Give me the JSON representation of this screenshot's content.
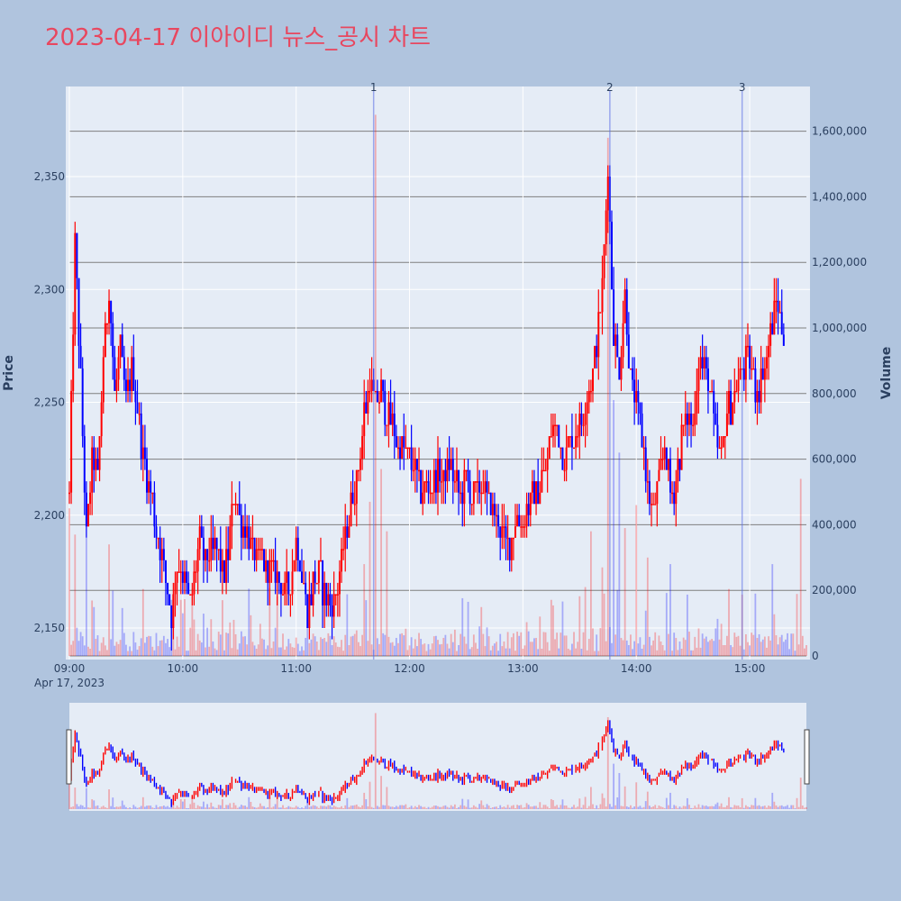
{
  "chart_data": {
    "type": "candlestick",
    "title": "2023-04-17 이아이디 뉴스_공시 차트",
    "date_label": "Apr 17, 2023",
    "ylabel": "Price",
    "y2label": "Volume",
    "price_range": [
      2135,
      2387
    ],
    "volume_range": [
      0,
      1750000
    ],
    "price_ticks": [
      "2,150",
      "2,200",
      "2,250",
      "2,300",
      "2,350"
    ],
    "price_tick_values": [
      2150,
      2200,
      2250,
      2300,
      2350
    ],
    "volume_ticks": [
      "0",
      "200,000",
      "400,000",
      "600,000",
      "800,000",
      "1,000,000",
      "1,200,000",
      "1,400,000",
      "1,600,000"
    ],
    "volume_tick_values": [
      0,
      200000,
      400000,
      600000,
      800000,
      1000000,
      1200000,
      1400000,
      1600000
    ],
    "time_ticks": [
      "09:00",
      "10:00",
      "11:00",
      "12:00",
      "13:00",
      "14:00",
      "15:00"
    ],
    "time_tick_minutes": [
      540,
      600,
      660,
      720,
      780,
      840,
      900
    ],
    "x_range_minutes": [
      540,
      930
    ],
    "up_color": "#ff0000",
    "down_color": "#0000ff",
    "news_markers": [
      {
        "label": "1",
        "minute": 701
      },
      {
        "label": "2",
        "minute": 826
      },
      {
        "label": "3",
        "minute": 896
      }
    ],
    "price_path": [
      [
        540,
        2210
      ],
      [
        543,
        2320
      ],
      [
        546,
        2260
      ],
      [
        549,
        2190
      ],
      [
        552,
        2225
      ],
      [
        555,
        2215
      ],
      [
        558,
        2270
      ],
      [
        561,
        2300
      ],
      [
        564,
        2255
      ],
      [
        567,
        2275
      ],
      [
        570,
        2250
      ],
      [
        573,
        2265
      ],
      [
        576,
        2250
      ],
      [
        579,
        2225
      ],
      [
        582,
        2215
      ],
      [
        585,
        2200
      ],
      [
        588,
        2185
      ],
      [
        591,
        2170
      ],
      [
        594,
        2155
      ],
      [
        597,
        2180
      ],
      [
        600,
        2175
      ],
      [
        603,
        2160
      ],
      [
        606,
        2170
      ],
      [
        609,
        2190
      ],
      [
        612,
        2180
      ],
      [
        615,
        2185
      ],
      [
        618,
        2185
      ],
      [
        621,
        2175
      ],
      [
        624,
        2180
      ],
      [
        627,
        2210
      ],
      [
        630,
        2200
      ],
      [
        633,
        2195
      ],
      [
        636,
        2185
      ],
      [
        639,
        2180
      ],
      [
        642,
        2180
      ],
      [
        645,
        2175
      ],
      [
        648,
        2175
      ],
      [
        651,
        2170
      ],
      [
        654,
        2165
      ],
      [
        657,
        2170
      ],
      [
        660,
        2190
      ],
      [
        663,
        2175
      ],
      [
        666,
        2155
      ],
      [
        669,
        2170
      ],
      [
        672,
        2175
      ],
      [
        675,
        2165
      ],
      [
        678,
        2160
      ],
      [
        681,
        2165
      ],
      [
        684,
        2180
      ],
      [
        687,
        2195
      ],
      [
        690,
        2210
      ],
      [
        693,
        2220
      ],
      [
        696,
        2245
      ],
      [
        699,
        2260
      ],
      [
        702,
        2250
      ],
      [
        705,
        2255
      ],
      [
        708,
        2245
      ],
      [
        711,
        2240
      ],
      [
        714,
        2230
      ],
      [
        717,
        2230
      ],
      [
        720,
        2225
      ],
      [
        723,
        2220
      ],
      [
        726,
        2210
      ],
      [
        729,
        2215
      ],
      [
        732,
        2210
      ],
      [
        735,
        2220
      ],
      [
        738,
        2215
      ],
      [
        741,
        2225
      ],
      [
        744,
        2215
      ],
      [
        747,
        2210
      ],
      [
        750,
        2215
      ],
      [
        753,
        2205
      ],
      [
        756,
        2210
      ],
      [
        759,
        2215
      ],
      [
        762,
        2205
      ],
      [
        765,
        2200
      ],
      [
        768,
        2195
      ],
      [
        771,
        2185
      ],
      [
        774,
        2190
      ],
      [
        777,
        2200
      ],
      [
        780,
        2195
      ],
      [
        783,
        2205
      ],
      [
        786,
        2210
      ],
      [
        789,
        2215
      ],
      [
        792,
        2220
      ],
      [
        795,
        2235
      ],
      [
        798,
        2240
      ],
      [
        801,
        2225
      ],
      [
        804,
        2230
      ],
      [
        807,
        2235
      ],
      [
        810,
        2240
      ],
      [
        813,
        2250
      ],
      [
        816,
        2260
      ],
      [
        819,
        2275
      ],
      [
        822,
        2300
      ],
      [
        825,
        2355
      ],
      [
        828,
        2280
      ],
      [
        831,
        2265
      ],
      [
        834,
        2300
      ],
      [
        837,
        2260
      ],
      [
        840,
        2250
      ],
      [
        843,
        2235
      ],
      [
        846,
        2210
      ],
      [
        849,
        2200
      ],
      [
        852,
        2215
      ],
      [
        855,
        2230
      ],
      [
        858,
        2210
      ],
      [
        861,
        2215
      ],
      [
        864,
        2235
      ],
      [
        867,
        2245
      ],
      [
        870,
        2240
      ],
      [
        873,
        2270
      ],
      [
        876,
        2265
      ],
      [
        879,
        2255
      ],
      [
        882,
        2235
      ],
      [
        885,
        2225
      ],
      [
        888,
        2245
      ],
      [
        891,
        2250
      ],
      [
        894,
        2260
      ],
      [
        897,
        2265
      ],
      [
        900,
        2270
      ],
      [
        903,
        2255
      ],
      [
        906,
        2260
      ],
      [
        909,
        2270
      ],
      [
        912,
        2285
      ],
      [
        915,
        2295
      ],
      [
        918,
        2280
      ]
    ],
    "volume_spikes": [
      {
        "minute": 540,
        "value": 450000
      },
      {
        "minute": 543,
        "value": 370000
      },
      {
        "minute": 549,
        "value": 360000
      },
      {
        "minute": 561,
        "value": 340000
      },
      {
        "minute": 600,
        "value": 130000
      },
      {
        "minute": 627,
        "value": 110000
      },
      {
        "minute": 666,
        "value": 110000
      },
      {
        "minute": 696,
        "value": 280000
      },
      {
        "minute": 699,
        "value": 470000
      },
      {
        "minute": 702,
        "value": 1650000
      },
      {
        "minute": 705,
        "value": 570000
      },
      {
        "minute": 708,
        "value": 380000
      },
      {
        "minute": 789,
        "value": 120000
      },
      {
        "minute": 813,
        "value": 210000
      },
      {
        "minute": 816,
        "value": 380000
      },
      {
        "minute": 822,
        "value": 270000
      },
      {
        "minute": 825,
        "value": 1580000
      },
      {
        "minute": 828,
        "value": 780000
      },
      {
        "minute": 831,
        "value": 620000
      },
      {
        "minute": 834,
        "value": 390000
      },
      {
        "minute": 840,
        "value": 460000
      },
      {
        "minute": 846,
        "value": 300000
      },
      {
        "minute": 858,
        "value": 280000
      },
      {
        "minute": 903,
        "value": 190000
      },
      {
        "minute": 912,
        "value": 280000
      },
      {
        "minute": 927,
        "value": 540000
      }
    ]
  }
}
